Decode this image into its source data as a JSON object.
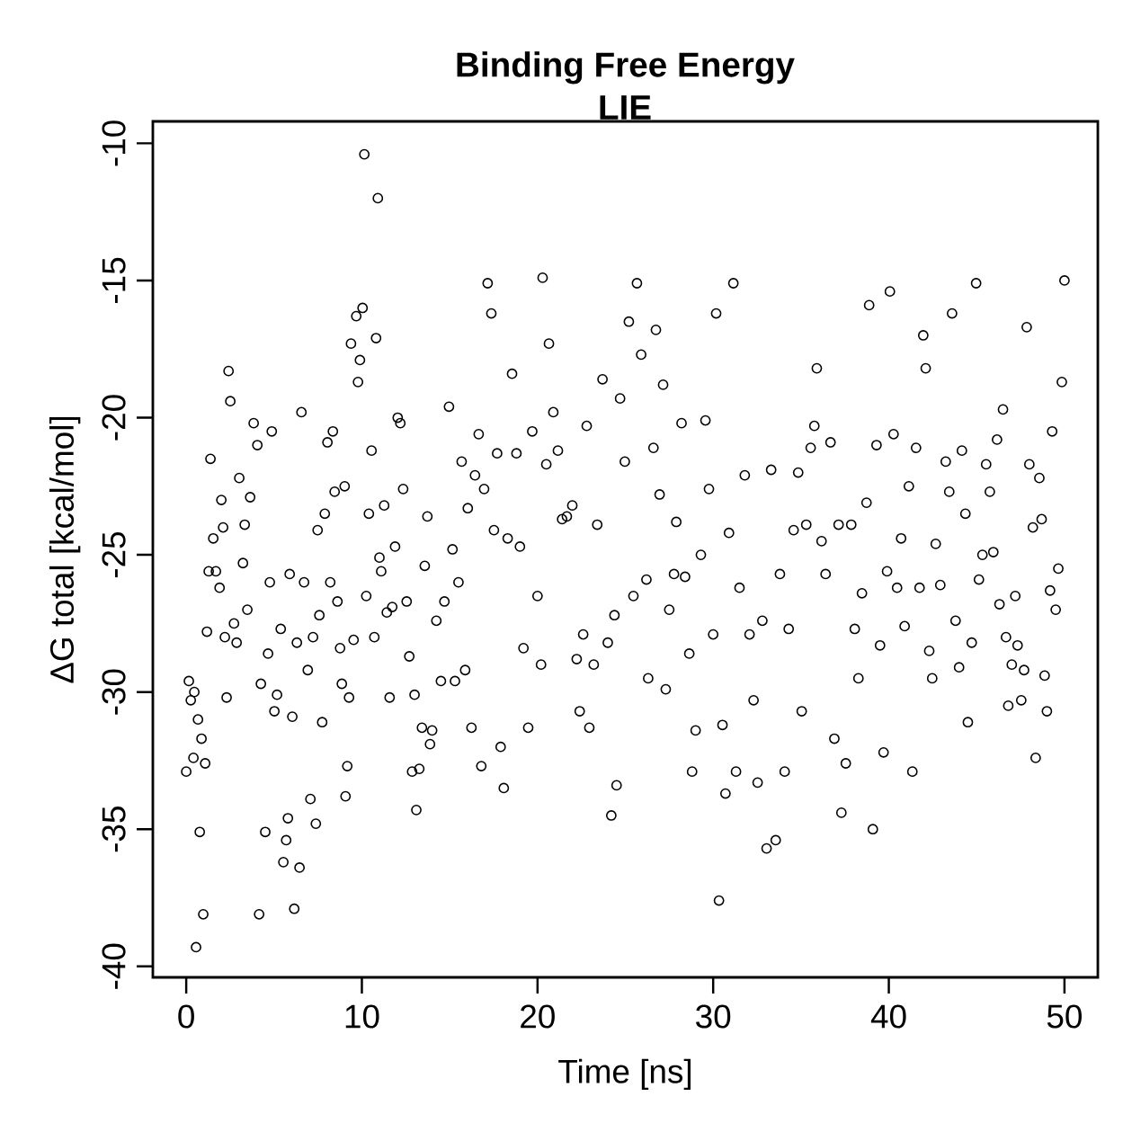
{
  "chart_data": {
    "type": "scatter",
    "title": "Binding Free Energy",
    "subtitle": "LIE",
    "xlabel": "Time [ns]",
    "ylabel": "ΔG total [kcal/mol]",
    "xlim": [
      -1.9,
      51.9
    ],
    "ylim": [
      -40.4,
      -9.2
    ],
    "xticks": [
      0,
      10,
      20,
      30,
      40,
      50
    ],
    "yticks": [
      -40,
      -35,
      -30,
      -25,
      -20,
      -15,
      -10
    ],
    "grid": false,
    "marker": "circle",
    "series": [
      {
        "color": "#000000",
        "x": [
          0,
          0.15,
          0.26,
          0.41,
          0.46,
          0.56,
          0.67,
          0.77,
          0.87,
          0.97,
          1.08,
          1.18,
          1.28,
          1.38,
          1.54,
          1.69,
          1.9,
          2.0,
          2.1,
          2.2,
          2.3,
          2.41,
          2.51,
          2.72,
          2.87,
          3.02,
          3.23,
          3.33,
          3.48,
          3.64,
          3.84,
          4.05,
          4.15,
          4.25,
          4.5,
          4.66,
          4.76,
          4.87,
          5.02,
          5.17,
          5.38,
          5.53,
          5.69,
          5.79,
          5.89,
          6.04,
          6.15,
          6.3,
          6.45,
          6.56,
          6.71,
          6.92,
          7.07,
          7.22,
          7.38,
          7.48,
          7.58,
          7.74,
          7.89,
          8.04,
          8.2,
          8.35,
          8.45,
          8.61,
          8.76,
          8.86,
          9.02,
          9.07,
          9.17,
          9.27,
          9.38,
          9.53,
          9.68,
          9.78,
          9.89,
          10.04,
          10.14,
          10.25,
          10.4,
          10.55,
          10.71,
          10.81,
          10.91,
          11.0,
          11.1,
          11.27,
          11.42,
          11.58,
          11.73,
          11.89,
          12.04,
          12.19,
          12.35,
          12.55,
          12.7,
          12.86,
          13.0,
          13.1,
          13.27,
          13.42,
          13.58,
          13.73,
          13.88,
          14.0,
          14.24,
          14.5,
          14.7,
          14.96,
          15.16,
          15.3,
          15.5,
          15.68,
          15.88,
          16.03,
          16.24,
          16.44,
          16.65,
          16.8,
          16.96,
          17.16,
          17.37,
          17.52,
          17.7,
          17.9,
          18.08,
          18.3,
          18.55,
          18.8,
          19.0,
          19.2,
          19.47,
          19.7,
          20.0,
          20.2,
          20.29,
          20.5,
          20.65,
          20.9,
          21.16,
          21.4,
          21.67,
          21.98,
          22.23,
          22.4,
          22.6,
          22.8,
          22.95,
          23.2,
          23.4,
          23.7,
          24.0,
          24.2,
          24.38,
          24.5,
          24.7,
          24.97,
          25.2,
          25.46,
          25.66,
          25.9,
          26.2,
          26.3,
          26.6,
          26.74,
          26.95,
          27.15,
          27.3,
          27.5,
          27.77,
          27.9,
          28.2,
          28.4,
          28.64,
          28.8,
          29.0,
          29.3,
          29.56,
          29.76,
          30.0,
          30.17,
          30.33,
          30.53,
          30.7,
          30.9,
          31.15,
          31.3,
          31.5,
          31.8,
          32.07,
          32.3,
          32.53,
          32.8,
          33.04,
          33.3,
          33.56,
          33.8,
          34.07,
          34.3,
          34.58,
          34.84,
          35.04,
          35.3,
          35.55,
          35.76,
          35.9,
          36.17,
          36.4,
          36.68,
          36.9,
          37.14,
          37.3,
          37.55,
          37.86,
          38.06,
          38.27,
          38.47,
          38.73,
          38.88,
          39.09,
          39.3,
          39.5,
          39.7,
          39.9,
          40.06,
          40.27,
          40.47,
          40.7,
          40.9,
          41.14,
          41.34,
          41.55,
          41.75,
          41.96,
          42.1,
          42.3,
          42.47,
          42.67,
          42.93,
          43.24,
          43.44,
          43.6,
          43.8,
          44.0,
          44.16,
          44.36,
          44.5,
          44.72,
          44.97,
          45.13,
          45.33,
          45.54,
          45.75,
          45.95,
          46.16,
          46.3,
          46.5,
          46.67,
          46.8,
          47.0,
          47.2,
          47.33,
          47.54,
          47.7,
          47.85,
          48.0,
          48.2,
          48.36,
          48.57,
          48.7,
          48.87,
          49.0,
          49.18,
          49.3,
          49.5,
          49.65,
          49.85,
          50.0
        ],
        "values": [
          -32.9,
          -29.6,
          -30.3,
          -32.4,
          -30.0,
          -39.3,
          -31.0,
          -35.1,
          -31.7,
          -38.1,
          -32.6,
          -27.8,
          -25.6,
          -21.5,
          -24.4,
          -25.6,
          -26.2,
          -23.0,
          -24.0,
          -28.0,
          -30.2,
          -18.3,
          -19.4,
          -27.5,
          -28.2,
          -22.2,
          -25.3,
          -23.9,
          -27.0,
          -22.9,
          -20.2,
          -21.0,
          -38.1,
          -29.7,
          -35.1,
          -28.6,
          -26.0,
          -20.5,
          -30.7,
          -30.1,
          -27.7,
          -36.2,
          -35.4,
          -34.6,
          -25.7,
          -30.9,
          -37.9,
          -28.2,
          -36.4,
          -19.8,
          -26.0,
          -29.2,
          -33.9,
          -28.0,
          -34.8,
          -24.1,
          -27.2,
          -31.1,
          -23.5,
          -20.9,
          -26.0,
          -20.5,
          -22.7,
          -26.7,
          -28.4,
          -29.7,
          -22.5,
          -33.8,
          -32.7,
          -30.2,
          -17.3,
          -28.1,
          -16.3,
          -18.7,
          -17.9,
          -16.0,
          -10.4,
          -26.5,
          -23.5,
          -21.2,
          -28.0,
          -17.1,
          -12.0,
          -25.1,
          -25.6,
          -23.2,
          -27.1,
          -30.2,
          -26.9,
          -24.7,
          -20.0,
          -20.2,
          -22.6,
          -26.7,
          -28.7,
          -32.9,
          -30.1,
          -34.3,
          -32.8,
          -31.3,
          -25.4,
          -23.6,
          -31.9,
          -31.4,
          -27.4,
          -29.6,
          -26.7,
          -19.6,
          -24.8,
          -29.6,
          -26.0,
          -21.6,
          -29.2,
          -23.3,
          -31.3,
          -22.1,
          -20.6,
          -32.7,
          -22.6,
          -15.1,
          -16.2,
          -24.1,
          -21.3,
          -32.0,
          -33.5,
          -24.4,
          -18.4,
          -21.3,
          -24.7,
          -28.4,
          -31.3,
          -20.5,
          -26.5,
          -29.0,
          -14.9,
          -21.7,
          -17.3,
          -19.8,
          -21.2,
          -23.7,
          -23.6,
          -23.2,
          -28.8,
          -30.7,
          -27.9,
          -20.3,
          -31.3,
          -29.0,
          -23.9,
          -18.6,
          -28.2,
          -34.5,
          -27.2,
          -33.4,
          -19.3,
          -21.6,
          -16.5,
          -26.5,
          -15.1,
          -17.7,
          -25.9,
          -29.5,
          -21.1,
          -16.8,
          -22.8,
          -18.8,
          -29.9,
          -27.0,
          -25.7,
          -23.8,
          -20.2,
          -25.8,
          -28.6,
          -32.9,
          -31.4,
          -25.0,
          -20.1,
          -22.6,
          -27.9,
          -16.2,
          -37.6,
          -31.2,
          -33.7,
          -24.2,
          -15.1,
          -32.9,
          -26.2,
          -22.1,
          -27.9,
          -30.3,
          -33.3,
          -27.4,
          -35.7,
          -21.9,
          -35.4,
          -25.7,
          -32.9,
          -27.7,
          -24.1,
          -22.0,
          -30.7,
          -23.9,
          -21.1,
          -20.3,
          -18.2,
          -24.5,
          -25.7,
          -20.9,
          -31.7,
          -23.9,
          -34.4,
          -32.6,
          -23.9,
          -27.7,
          -29.5,
          -26.4,
          -23.1,
          -15.9,
          -35.0,
          -21.0,
          -28.3,
          -32.2,
          -25.6,
          -15.4,
          -20.6,
          -26.2,
          -24.4,
          -27.6,
          -22.5,
          -32.9,
          -21.1,
          -26.2,
          -17.0,
          -18.2,
          -28.5,
          -29.5,
          -24.6,
          -26.1,
          -21.6,
          -22.7,
          -16.2,
          -27.4,
          -29.1,
          -21.2,
          -23.5,
          -31.1,
          -28.2,
          -15.1,
          -25.9,
          -25.0,
          -21.7,
          -22.7,
          -24.9,
          -20.8,
          -26.8,
          -19.7,
          -28.0,
          -30.5,
          -29.0,
          -26.5,
          -28.3,
          -30.3,
          -29.2,
          -16.7,
          -21.7,
          -24.0,
          -32.4,
          -22.2,
          -23.7,
          -29.4,
          -30.7,
          -26.3,
          -20.5,
          -27.0,
          -25.5,
          -18.7,
          -15.0
        ]
      }
    ]
  }
}
